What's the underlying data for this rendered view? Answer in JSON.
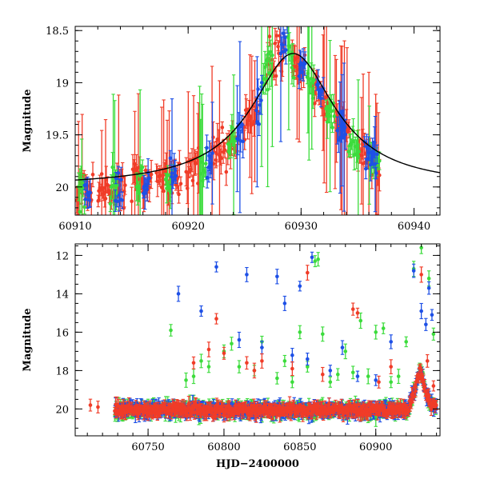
{
  "colors": {
    "red": "#f03c28",
    "green": "#3cdc3c",
    "blue": "#1e50e6",
    "model": "#000000"
  },
  "chart_data": [
    {
      "type": "scatter",
      "name": "zoom-panel",
      "xlabel": "",
      "ylabel": "Magnitude",
      "xlim": [
        60910,
        60942.3
      ],
      "ylim": [
        20.27,
        18.46
      ],
      "y_inverted": true,
      "x_ticks": [
        60910,
        60920,
        60930,
        60940
      ],
      "x_tick_labels": [
        "60910",
        "60920",
        "60930",
        "60940"
      ],
      "y_ticks": [
        18.5,
        19,
        19.5,
        20
      ],
      "y_tick_labels": [
        "18.5",
        "19",
        "19.5",
        "20"
      ],
      "model_curve": {
        "baseline": 20.0,
        "peak_mag": 18.72,
        "peak_time": 60929.3,
        "width": 4.5
      },
      "series": [
        {
          "color_key": "red",
          "dense_segments": [
            [
              60910.1,
              60911.6
            ],
            [
              60912.0,
              60914.5
            ],
            [
              60915.0,
              60916.8
            ],
            [
              60917.2,
              60919.4
            ],
            [
              60919.8,
              60921.0
            ],
            [
              60922.0,
              60924.5
            ],
            [
              60924.9,
              60926.2
            ],
            [
              60926.9,
              60928.6
            ],
            [
              60929.2,
              60930.4
            ],
            [
              60931.0,
              60932.5
            ],
            [
              60933.0,
              60934.4
            ],
            [
              60935.0,
              60937.0
            ]
          ]
        },
        {
          "color_key": "green",
          "dense_segments": [
            [
              60910.3,
              60910.9
            ],
            [
              60913.1,
              60913.8
            ],
            [
              60915.4,
              60916.0
            ],
            [
              60918.0,
              60918.6
            ],
            [
              60921.0,
              60921.6
            ],
            [
              60923.5,
              60924.2
            ],
            [
              60926.5,
              60927.5
            ],
            [
              60928.8,
              60929.4
            ],
            [
              60930.5,
              60931.2
            ],
            [
              60932.2,
              60933.0
            ],
            [
              60934.2,
              60935.2
            ],
            [
              60936.0,
              60937.0
            ]
          ]
        },
        {
          "color_key": "blue",
          "dense_segments": [
            [
              60910.8,
              60911.4
            ],
            [
              60913.5,
              60914.2
            ],
            [
              60916.0,
              60916.6
            ],
            [
              60918.4,
              60919.0
            ],
            [
              60921.6,
              60922.2
            ],
            [
              60924.3,
              60924.9
            ],
            [
              60926.0,
              60926.6
            ],
            [
              60928.2,
              60928.8
            ],
            [
              60929.8,
              60930.4
            ],
            [
              60931.4,
              60932.0
            ],
            [
              60933.2,
              60934.0
            ],
            [
              60935.6,
              60936.8
            ]
          ]
        }
      ]
    },
    {
      "type": "scatter",
      "name": "full-panel",
      "xlabel": "HJD−2400000",
      "ylabel": "Magnitude",
      "xlim": [
        60702,
        60942.3
      ],
      "ylim": [
        21.4,
        11.4
      ],
      "y_inverted": true,
      "x_ticks": [
        60750,
        60800,
        60850,
        60900
      ],
      "x_tick_labels": [
        "60750",
        "60800",
        "60850",
        "60900"
      ],
      "y_ticks": [
        12,
        14,
        16,
        18,
        20
      ],
      "y_tick_labels": [
        "12",
        "14",
        "16",
        "18",
        "20"
      ],
      "baseline_mag": 20.05,
      "band_start": 60728,
      "flare": {
        "start": 60922,
        "peak_time": 60929,
        "peak_mag": 18.0
      },
      "outliers": {
        "red": [
          [
            60712,
            19.8
          ],
          [
            60717,
            19.9
          ],
          [
            60780,
            17.6
          ],
          [
            60790,
            16.9
          ],
          [
            60795,
            15.3
          ],
          [
            60800,
            17.1
          ],
          [
            60815,
            17.6
          ],
          [
            60820,
            18.0
          ],
          [
            60825,
            17.5
          ],
          [
            60845,
            17.9
          ],
          [
            60855,
            12.9
          ],
          [
            60865,
            18.2
          ],
          [
            60885,
            14.8
          ],
          [
            60888,
            15.0
          ],
          [
            60902,
            18.6
          ],
          [
            60910,
            17.8
          ],
          [
            60930,
            13.0
          ],
          [
            60934,
            17.5
          ],
          [
            60938,
            18.8
          ]
        ],
        "green": [
          [
            60765,
            15.9
          ],
          [
            60775,
            18.5
          ],
          [
            60780,
            18.3
          ],
          [
            60785,
            17.5
          ],
          [
            60790,
            17.8
          ],
          [
            60800,
            17.0
          ],
          [
            60805,
            16.6
          ],
          [
            60810,
            17.8
          ],
          [
            60820,
            18.0
          ],
          [
            60825,
            16.5
          ],
          [
            60835,
            18.4
          ],
          [
            60840,
            17.5
          ],
          [
            60845,
            18.6
          ],
          [
            60850,
            16.0
          ],
          [
            60855,
            17.8
          ],
          [
            60860,
            12.3
          ],
          [
            60862,
            12.2
          ],
          [
            60865,
            16.1
          ],
          [
            60870,
            18.6
          ],
          [
            60875,
            18.2
          ],
          [
            60880,
            17.0
          ],
          [
            60885,
            18.1
          ],
          [
            60890,
            15.4
          ],
          [
            60895,
            18.3
          ],
          [
            60900,
            16.0
          ],
          [
            60905,
            15.8
          ],
          [
            60910,
            18.6
          ],
          [
            60915,
            18.3
          ],
          [
            60920,
            16.5
          ],
          [
            60925,
            12.7
          ],
          [
            60930,
            11.6
          ],
          [
            60935,
            13.2
          ],
          [
            60938,
            16.1
          ]
        ],
        "blue": [
          [
            60770,
            14.0
          ],
          [
            60785,
            14.9
          ],
          [
            60795,
            12.6
          ],
          [
            60810,
            16.4
          ],
          [
            60815,
            13.0
          ],
          [
            60825,
            16.8
          ],
          [
            60835,
            13.1
          ],
          [
            60840,
            14.5
          ],
          [
            60845,
            17.2
          ],
          [
            60850,
            13.6
          ],
          [
            60855,
            17.4
          ],
          [
            60858,
            12.1
          ],
          [
            60870,
            18.0
          ],
          [
            60878,
            16.8
          ],
          [
            60888,
            18.3
          ],
          [
            60900,
            18.5
          ],
          [
            60910,
            16.5
          ],
          [
            60925,
            12.8
          ],
          [
            60930,
            14.9
          ],
          [
            60933,
            15.6
          ],
          [
            60935,
            13.7
          ],
          [
            60937,
            15.1
          ]
        ]
      }
    }
  ]
}
